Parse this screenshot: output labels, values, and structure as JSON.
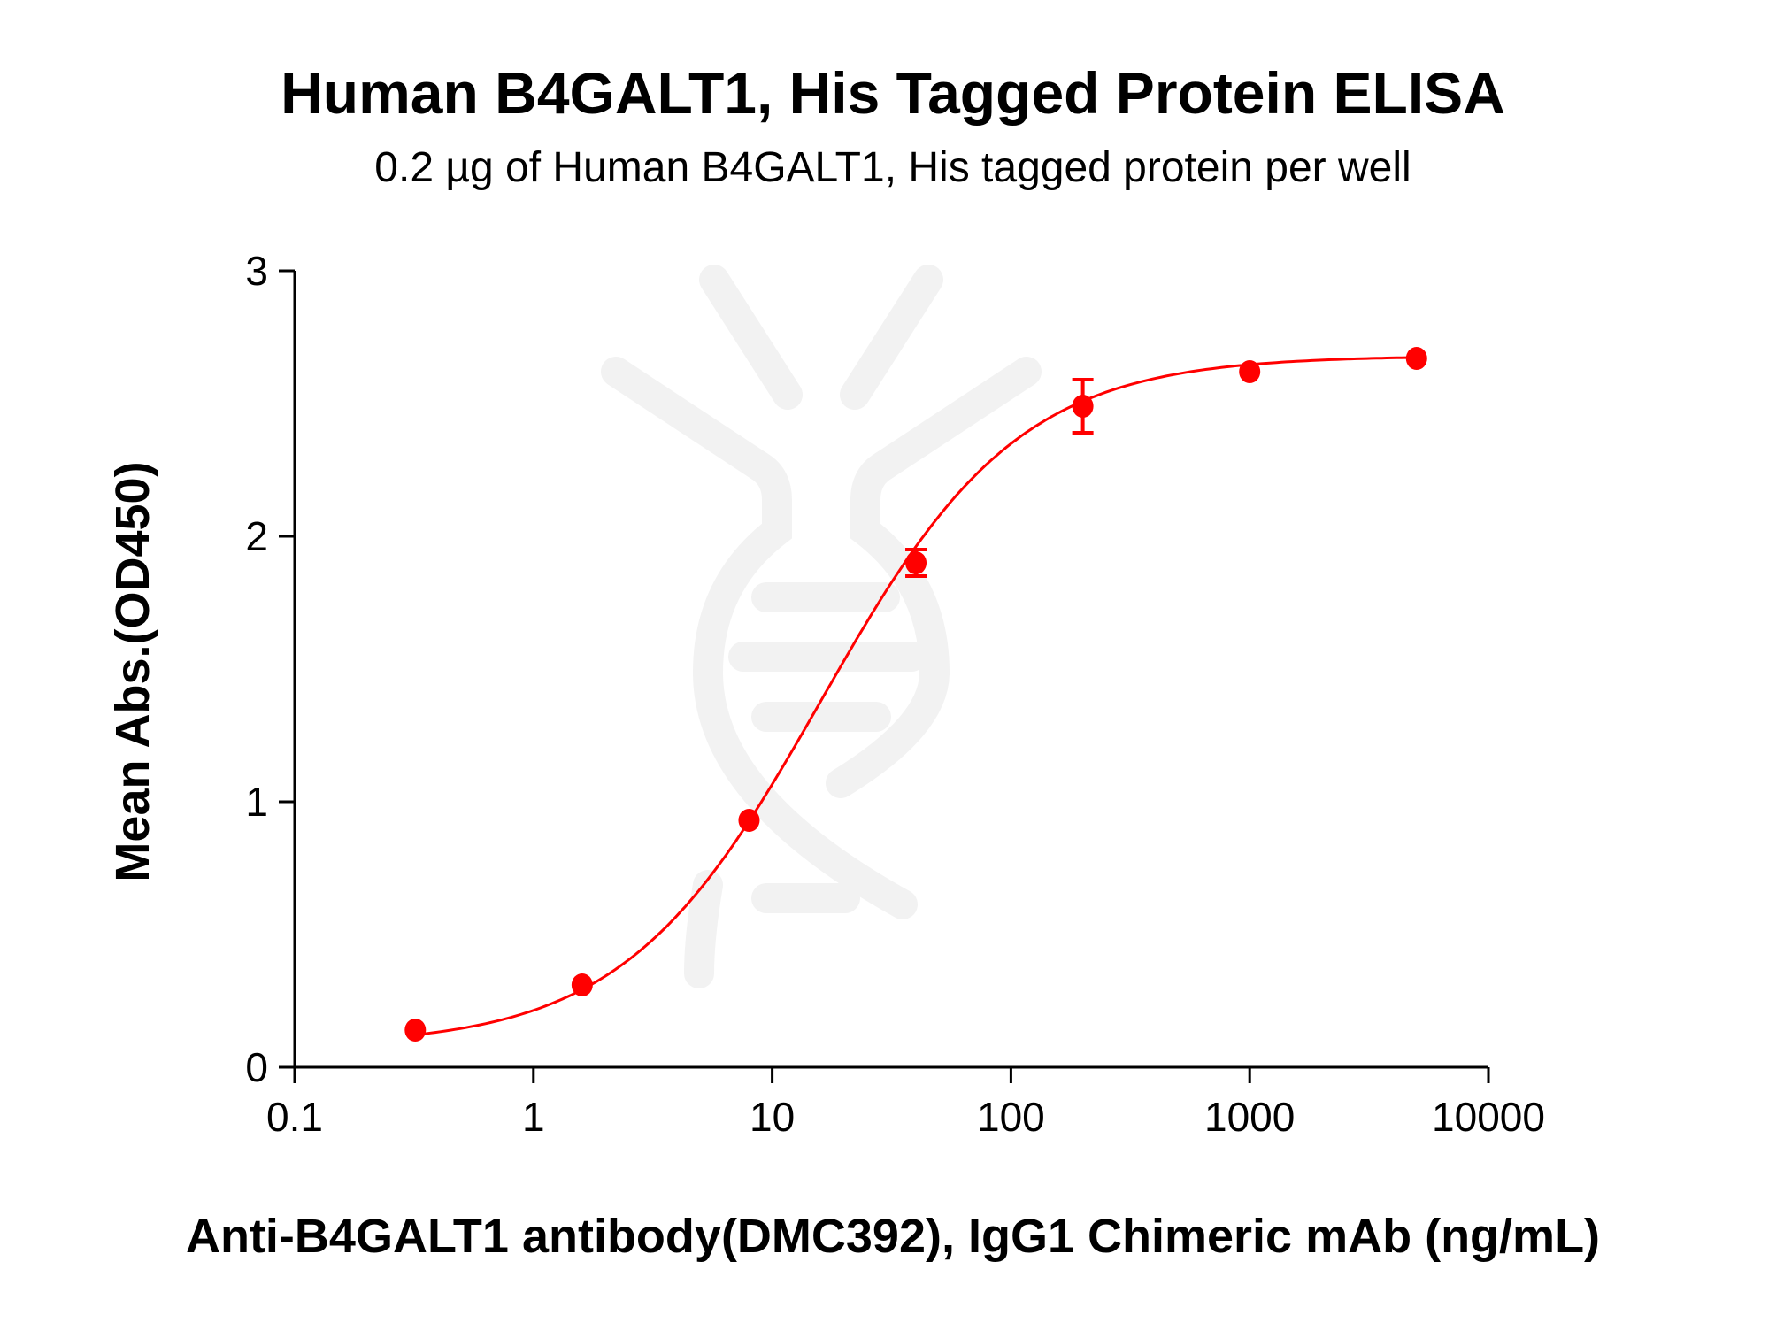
{
  "chart_data": {
    "type": "scatter",
    "title": "Human B4GALT1, His Tagged Protein ELISA",
    "subtitle": "0.2 µg of Human B4GALT1, His tagged protein per well",
    "xlabel": "Anti-B4GALT1 antibody(DMC392), IgG1 Chimeric mAb (ng/mL)",
    "ylabel": "Mean Abs.(OD450)",
    "xscale": "log",
    "xlim": [
      0.1,
      10000
    ],
    "ylim": [
      0,
      3
    ],
    "xticks": [
      "0.1",
      "1",
      "10",
      "100",
      "1000",
      "10000"
    ],
    "xtick_values": [
      0.1,
      1,
      10,
      100,
      1000,
      10000
    ],
    "yticks": [
      "0",
      "1",
      "2",
      "3"
    ],
    "ytick_values": [
      0,
      1,
      2,
      3
    ],
    "grid": false,
    "fit": "sigmoidal curve",
    "color": "#ff0000",
    "points": [
      {
        "x": 0.32,
        "y": 0.14,
        "err": 0
      },
      {
        "x": 1.6,
        "y": 0.31,
        "err": 0
      },
      {
        "x": 8,
        "y": 0.93,
        "err": 0
      },
      {
        "x": 40,
        "y": 1.9,
        "err": 0.05
      },
      {
        "x": 200,
        "y": 2.49,
        "err": 0.1
      },
      {
        "x": 1000,
        "y": 2.62,
        "err": 0
      },
      {
        "x": 5000,
        "y": 2.67,
        "err": 0
      }
    ]
  }
}
